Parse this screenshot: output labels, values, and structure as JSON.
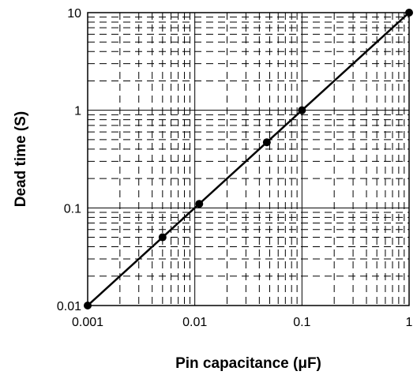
{
  "chart_data": {
    "type": "line",
    "title": "",
    "xlabel": "Pin capacitance (μF)",
    "ylabel": "Dead time (S)",
    "x_scale": "log",
    "y_scale": "log",
    "xlim": [
      0.001,
      1
    ],
    "ylim": [
      0.01,
      10
    ],
    "x_ticks": [
      "0.001",
      "0.01",
      "0.1",
      "1"
    ],
    "y_ticks": [
      "0.01",
      "0.1",
      "1",
      "10"
    ],
    "grid": true,
    "line_color": "#000000",
    "series": [
      {
        "x": [
          0.001,
          0.005,
          0.011,
          0.047,
          0.1,
          1
        ],
        "y": [
          0.01,
          0.05,
          0.11,
          0.47,
          1,
          10
        ]
      }
    ],
    "markers": [
      {
        "x": 0.001,
        "y": 0.01
      },
      {
        "x": 0.005,
        "y": 0.05
      },
      {
        "x": 0.011,
        "y": 0.11
      },
      {
        "x": 0.047,
        "y": 0.47
      },
      {
        "x": 0.1,
        "y": 1
      },
      {
        "x": 1,
        "y": 10
      }
    ]
  }
}
